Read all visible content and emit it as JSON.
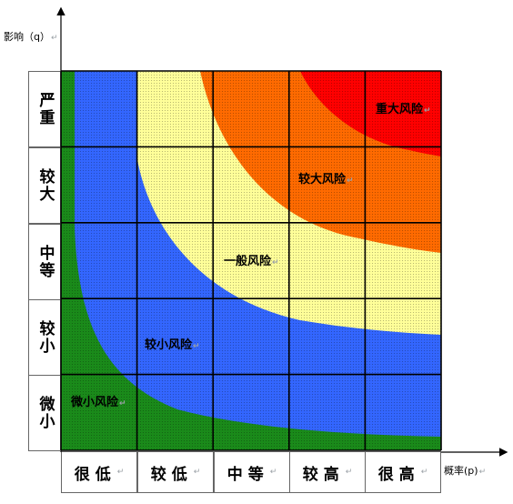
{
  "axes": {
    "y_title": "影响（q）",
    "x_title": "概率(p)",
    "y_levels": [
      "严重",
      "较大",
      "中等",
      "较小",
      "微小"
    ],
    "x_levels": [
      "很低",
      "较低",
      "中等",
      "较高",
      "很高"
    ]
  },
  "zones": [
    {
      "label": "重大风险",
      "color": "#ff0000"
    },
    {
      "label": "较大风险",
      "color": "#ff6a00"
    },
    {
      "label": "一般风险",
      "color": "#ffff99"
    },
    {
      "label": "较小风险",
      "color": "#3366ff"
    },
    {
      "label": "微小风险",
      "color": "#1a8a1a"
    }
  ],
  "edit_mark": "↵"
}
